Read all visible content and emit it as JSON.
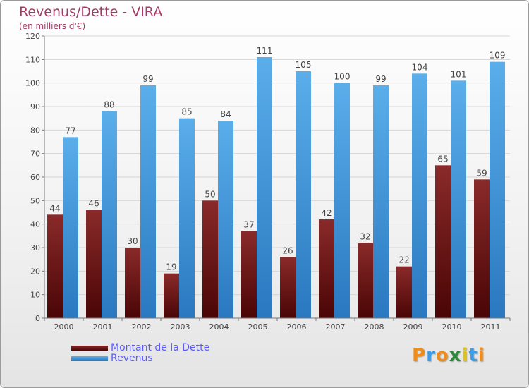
{
  "header": {
    "title": "Revenus/Dette - VIRA",
    "subtitle": "(en milliers d'€)"
  },
  "legend": {
    "items": [
      {
        "label": "Montant de la Dette",
        "color": "#7a1a1a"
      },
      {
        "label": "Revenus",
        "color": "#4a9fe0"
      }
    ]
  },
  "logo": {
    "text": "Proxiti",
    "colors": [
      "#f08c1a",
      "#3a9be8",
      "#f08c1a",
      "#2e8a3a",
      "#e0c21a",
      "#3a9be8",
      "#f08c1a"
    ]
  },
  "chart_data": {
    "type": "bar",
    "title": "Revenus/Dette - VIRA",
    "subtitle": "(en milliers d'€)",
    "categories": [
      "2000",
      "2001",
      "2002",
      "2003",
      "2004",
      "2005",
      "2006",
      "2007",
      "2008",
      "2009",
      "2010",
      "2011"
    ],
    "series": [
      {
        "name": "Montant de la Dette",
        "color": "#7a1a1a",
        "values": [
          44,
          46,
          30,
          19,
          50,
          37,
          26,
          42,
          32,
          22,
          65,
          59
        ]
      },
      {
        "name": "Revenus",
        "color": "#4a9fe0",
        "values": [
          77,
          88,
          99,
          85,
          84,
          111,
          105,
          100,
          99,
          104,
          101,
          109
        ]
      }
    ],
    "ylim": [
      0,
      120
    ],
    "yticks": [
      0,
      10,
      20,
      30,
      40,
      50,
      60,
      70,
      80,
      90,
      100,
      110,
      120
    ],
    "grid": true,
    "legend_position": "bottom-left"
  }
}
